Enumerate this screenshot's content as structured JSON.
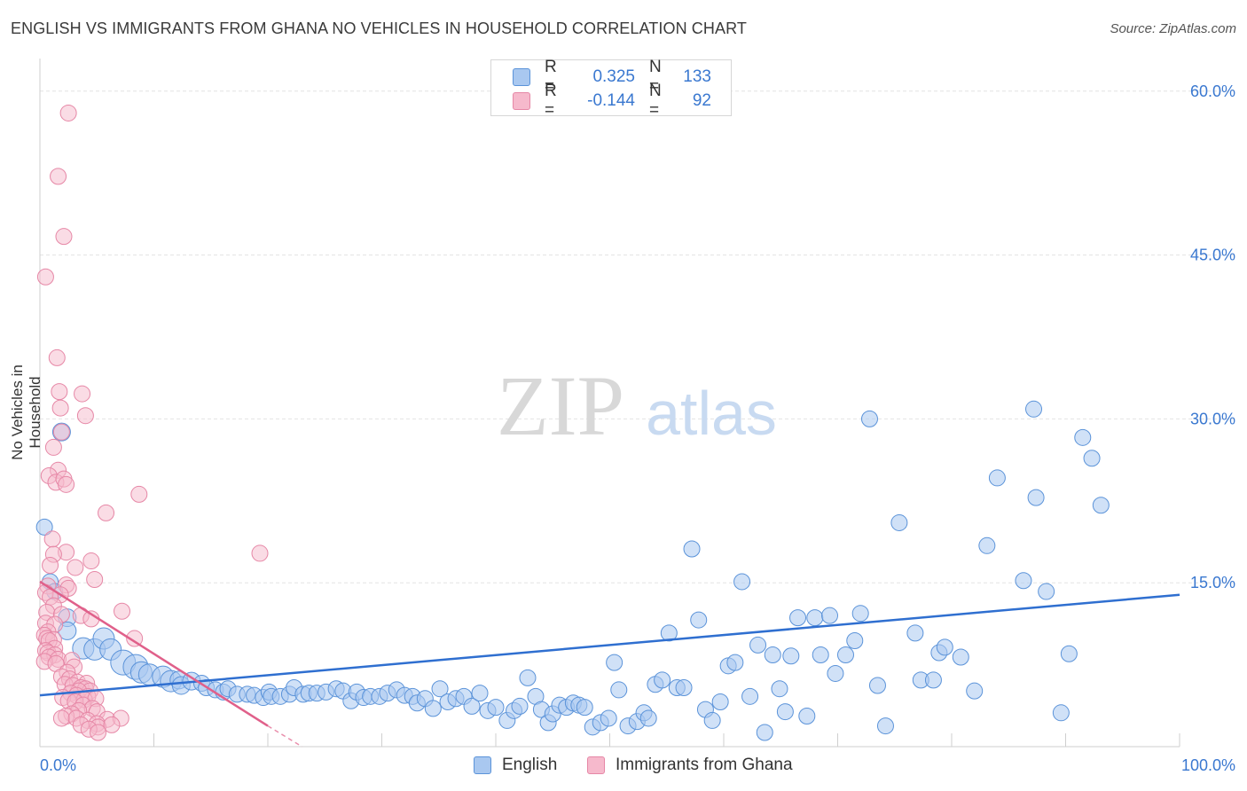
{
  "title": "ENGLISH VS IMMIGRANTS FROM GHANA NO VEHICLES IN HOUSEHOLD CORRELATION CHART",
  "source": "Source: ZipAtlas.com",
  "watermark": {
    "zip": "ZIP",
    "atlas": "atlas"
  },
  "colors": {
    "blue_fill": "#a9c8f0",
    "blue_stroke": "#5b93d9",
    "blue_line": "#2f6fd0",
    "pink_fill": "#f6b9cc",
    "pink_stroke": "#e687a6",
    "pink_line": "#e0608a",
    "axis_text": "#3a78d0",
    "grid": "#e3e3e3"
  },
  "legend": {
    "rows": [
      {
        "r_label": "R =",
        "r_value": "0.325",
        "n_label": "N =",
        "n_value": "133"
      },
      {
        "r_label": "R =",
        "r_value": "-0.144",
        "n_label": "N =",
        "n_value": "92"
      }
    ]
  },
  "bottom_legend": [
    "English",
    "Immigrants from Ghana"
  ],
  "chart_data": {
    "type": "scatter",
    "title": "ENGLISH VS IMMIGRANTS FROM GHANA NO VEHICLES IN HOUSEHOLD CORRELATION CHART",
    "xlabel": "",
    "ylabel": "No Vehicles in Household",
    "xlim": [
      0,
      100
    ],
    "ylim": [
      0,
      62.5
    ],
    "x_tick_labels": [
      "0.0%",
      "100.0%"
    ],
    "y_ticks": [
      15,
      30,
      45,
      60
    ],
    "y_tick_labels": [
      "15.0%",
      "30.0%",
      "45.0%",
      "60.0%"
    ],
    "grid": true,
    "series": [
      {
        "name": "English",
        "color": "#5b93d9",
        "trend": {
          "x": [
            0,
            100
          ],
          "y": [
            4.7,
            13.9
          ]
        },
        "points": [
          [
            0.4,
            20.1,
            9
          ],
          [
            0.9,
            15.1,
            9
          ],
          [
            1.3,
            14.2,
            9
          ],
          [
            1.9,
            28.8,
            10
          ],
          [
            2.4,
            11.8,
            10
          ],
          [
            2.4,
            10.6,
            10
          ],
          [
            3.8,
            9.0,
            12
          ],
          [
            4.8,
            8.9,
            12
          ],
          [
            5.6,
            9.9,
            12
          ],
          [
            6.2,
            8.9,
            12
          ],
          [
            7.3,
            7.7,
            14
          ],
          [
            8.4,
            7.3,
            14
          ],
          [
            8.9,
            6.8,
            12
          ],
          [
            9.6,
            6.6,
            12
          ],
          [
            10.8,
            6.4,
            12
          ],
          [
            11.5,
            6.0,
            12
          ],
          [
            12.2,
            6.1,
            10
          ],
          [
            12.4,
            5.6,
            10
          ],
          [
            13.3,
            6.0,
            10
          ],
          [
            14.2,
            5.8,
            9
          ],
          [
            14.6,
            5.4,
            9
          ],
          [
            15.4,
            5.2,
            9
          ],
          [
            16.1,
            5.0,
            9
          ],
          [
            16.5,
            5.3,
            9
          ],
          [
            17.3,
            4.8,
            9
          ],
          [
            18.2,
            4.8,
            9
          ],
          [
            18.8,
            4.7,
            9
          ],
          [
            19.6,
            4.5,
            9
          ],
          [
            20.1,
            5.0,
            9
          ],
          [
            20.3,
            4.6,
            9
          ],
          [
            21.1,
            4.6,
            9
          ],
          [
            21.9,
            4.8,
            9
          ],
          [
            22.3,
            5.4,
            9
          ],
          [
            23.1,
            4.8,
            9
          ],
          [
            23.6,
            4.9,
            9
          ],
          [
            24.3,
            4.9,
            9
          ],
          [
            25.1,
            5.0,
            9
          ],
          [
            26.0,
            5.3,
            9
          ],
          [
            26.6,
            5.1,
            9
          ],
          [
            27.3,
            4.2,
            9
          ],
          [
            27.8,
            5.0,
            9
          ],
          [
            28.4,
            4.5,
            9
          ],
          [
            29.0,
            4.6,
            9
          ],
          [
            29.8,
            4.6,
            9
          ],
          [
            30.5,
            4.9,
            9
          ],
          [
            31.3,
            5.2,
            9
          ],
          [
            32.0,
            4.7,
            9
          ],
          [
            32.7,
            4.6,
            9
          ],
          [
            33.1,
            4.0,
            9
          ],
          [
            33.8,
            4.4,
            9
          ],
          [
            34.5,
            3.5,
            9
          ],
          [
            35.1,
            5.3,
            9
          ],
          [
            35.8,
            4.1,
            9
          ],
          [
            36.5,
            4.4,
            9
          ],
          [
            37.2,
            4.6,
            9
          ],
          [
            37.9,
            3.7,
            9
          ],
          [
            38.6,
            4.9,
            9
          ],
          [
            39.3,
            3.3,
            9
          ],
          [
            40.0,
            3.6,
            9
          ],
          [
            41.0,
            2.4,
            9
          ],
          [
            41.6,
            3.3,
            9
          ],
          [
            42.1,
            3.7,
            9
          ],
          [
            42.8,
            6.3,
            9
          ],
          [
            43.5,
            4.6,
            9
          ],
          [
            44.0,
            3.4,
            9
          ],
          [
            44.6,
            2.2,
            9
          ],
          [
            45.0,
            3.0,
            9
          ],
          [
            45.6,
            3.8,
            9
          ],
          [
            46.2,
            3.6,
            9
          ],
          [
            46.8,
            4.0,
            9
          ],
          [
            47.3,
            3.8,
            9
          ],
          [
            47.8,
            3.6,
            9
          ],
          [
            48.5,
            1.8,
            9
          ],
          [
            49.2,
            2.2,
            9
          ],
          [
            49.9,
            2.6,
            9
          ],
          [
            50.4,
            7.7,
            9
          ],
          [
            50.8,
            5.2,
            9
          ],
          [
            51.6,
            1.9,
            9
          ],
          [
            52.4,
            2.3,
            9
          ],
          [
            53.0,
            3.1,
            9
          ],
          [
            53.4,
            2.6,
            9
          ],
          [
            54.0,
            5.7,
            9
          ],
          [
            54.6,
            6.1,
            9
          ],
          [
            55.2,
            10.4,
            9
          ],
          [
            55.9,
            5.4,
            9
          ],
          [
            56.5,
            5.4,
            9
          ],
          [
            57.2,
            18.1,
            9
          ],
          [
            57.8,
            11.6,
            9
          ],
          [
            58.4,
            3.4,
            9
          ],
          [
            59.0,
            2.4,
            9
          ],
          [
            59.7,
            4.1,
            9
          ],
          [
            60.4,
            7.4,
            9
          ],
          [
            61.0,
            7.7,
            9
          ],
          [
            61.6,
            15.1,
            9
          ],
          [
            62.3,
            4.6,
            9
          ],
          [
            63.0,
            9.3,
            9
          ],
          [
            63.6,
            1.3,
            9
          ],
          [
            64.3,
            8.4,
            9
          ],
          [
            64.9,
            5.3,
            9
          ],
          [
            65.4,
            3.2,
            9
          ],
          [
            65.9,
            8.3,
            9
          ],
          [
            66.5,
            11.8,
            9
          ],
          [
            67.3,
            2.8,
            9
          ],
          [
            68.0,
            11.8,
            9
          ],
          [
            68.5,
            8.4,
            9
          ],
          [
            69.3,
            12.0,
            9
          ],
          [
            69.8,
            6.7,
            9
          ],
          [
            70.7,
            8.4,
            9
          ],
          [
            71.5,
            9.7,
            9
          ],
          [
            72.0,
            12.2,
            9
          ],
          [
            72.8,
            30.0,
            9
          ],
          [
            73.5,
            5.6,
            9
          ],
          [
            74.2,
            1.9,
            9
          ],
          [
            75.4,
            20.5,
            9
          ],
          [
            76.8,
            10.4,
            9
          ],
          [
            77.3,
            6.1,
            9
          ],
          [
            78.4,
            6.1,
            9
          ],
          [
            78.9,
            8.6,
            9
          ],
          [
            79.4,
            9.1,
            9
          ],
          [
            80.8,
            8.2,
            9
          ],
          [
            82.0,
            5.1,
            9
          ],
          [
            83.1,
            18.4,
            9
          ],
          [
            84.0,
            24.6,
            9
          ],
          [
            86.3,
            15.2,
            9
          ],
          [
            87.2,
            30.9,
            9
          ],
          [
            87.4,
            22.8,
            9
          ],
          [
            88.3,
            14.2,
            9
          ],
          [
            89.6,
            3.1,
            9
          ],
          [
            90.3,
            8.5,
            9
          ],
          [
            91.5,
            28.3,
            9
          ],
          [
            92.3,
            26.4,
            9
          ],
          [
            93.1,
            22.1,
            9
          ]
        ]
      },
      {
        "name": "Immigrants from Ghana",
        "color": "#e687a6",
        "trend": {
          "x": [
            0,
            20
          ],
          "y": [
            15.1,
            1.9
          ]
        },
        "trend_dashed": {
          "x": [
            20,
            23
          ],
          "y": [
            1.9,
            0.0
          ]
        },
        "points": [
          [
            2.5,
            58.0,
            9
          ],
          [
            1.6,
            52.2,
            9
          ],
          [
            2.1,
            46.7,
            9
          ],
          [
            0.5,
            43.0,
            9
          ],
          [
            1.5,
            35.6,
            9
          ],
          [
            1.7,
            32.5,
            9
          ],
          [
            3.7,
            32.3,
            9
          ],
          [
            1.8,
            31.0,
            9
          ],
          [
            4.0,
            30.3,
            9
          ],
          [
            1.9,
            28.8,
            9
          ],
          [
            1.2,
            27.4,
            9
          ],
          [
            1.6,
            25.3,
            9
          ],
          [
            0.8,
            24.8,
            9
          ],
          [
            1.4,
            24.2,
            9
          ],
          [
            2.1,
            24.5,
            9
          ],
          [
            2.3,
            24.0,
            9
          ],
          [
            8.7,
            23.1,
            9
          ],
          [
            5.8,
            21.4,
            9
          ],
          [
            1.1,
            19.0,
            9
          ],
          [
            2.3,
            17.8,
            9
          ],
          [
            19.3,
            17.7,
            9
          ],
          [
            1.2,
            17.6,
            9
          ],
          [
            4.5,
            17.0,
            9
          ],
          [
            0.9,
            16.6,
            9
          ],
          [
            3.1,
            16.4,
            9
          ],
          [
            4.8,
            15.3,
            9
          ],
          [
            0.7,
            14.7,
            9
          ],
          [
            2.3,
            14.8,
            9
          ],
          [
            2.5,
            14.5,
            9
          ],
          [
            0.5,
            14.1,
            9
          ],
          [
            1.8,
            13.9,
            9
          ],
          [
            0.9,
            13.7,
            9
          ],
          [
            1.2,
            12.9,
            9
          ],
          [
            7.2,
            12.4,
            9
          ],
          [
            0.6,
            12.3,
            9
          ],
          [
            1.9,
            12.1,
            9
          ],
          [
            3.6,
            12.0,
            9
          ],
          [
            4.5,
            11.7,
            9
          ],
          [
            0.5,
            11.3,
            9
          ],
          [
            1.3,
            11.2,
            9
          ],
          [
            0.7,
            10.5,
            9
          ],
          [
            0.4,
            10.2,
            9
          ],
          [
            0.6,
            9.9,
            9
          ],
          [
            1.2,
            9.8,
            9
          ],
          [
            8.3,
            9.9,
            9
          ],
          [
            0.8,
            9.7,
            9
          ],
          [
            1.3,
            9.0,
            9
          ],
          [
            0.5,
            8.8,
            9
          ],
          [
            0.7,
            8.6,
            9
          ],
          [
            1.3,
            8.4,
            9
          ],
          [
            0.8,
            8.2,
            9
          ],
          [
            1.6,
            8.0,
            9
          ],
          [
            0.4,
            7.8,
            9
          ],
          [
            2.8,
            7.9,
            9
          ],
          [
            1.4,
            7.6,
            9
          ],
          [
            3.0,
            7.3,
            9
          ],
          [
            2.4,
            6.8,
            9
          ],
          [
            1.9,
            6.4,
            9
          ],
          [
            2.6,
            6.2,
            9
          ],
          [
            3.3,
            5.9,
            9
          ],
          [
            2.2,
            5.7,
            9
          ],
          [
            4.1,
            5.8,
            9
          ],
          [
            2.9,
            5.6,
            9
          ],
          [
            3.6,
            5.4,
            9
          ],
          [
            4.0,
            5.3,
            9
          ],
          [
            4.4,
            5.1,
            9
          ],
          [
            3.4,
            5.1,
            9
          ],
          [
            2.7,
            4.9,
            9
          ],
          [
            3.2,
            4.7,
            9
          ],
          [
            4.2,
            4.6,
            9
          ],
          [
            2.0,
            4.5,
            9
          ],
          [
            3.9,
            4.3,
            9
          ],
          [
            4.9,
            4.4,
            9
          ],
          [
            2.5,
            4.2,
            9
          ],
          [
            3.1,
            4.1,
            9
          ],
          [
            3.8,
            3.8,
            9
          ],
          [
            4.6,
            3.5,
            9
          ],
          [
            3.4,
            3.3,
            9
          ],
          [
            2.8,
            3.0,
            9
          ],
          [
            5.0,
            3.2,
            9
          ],
          [
            2.3,
            2.8,
            9
          ],
          [
            1.9,
            2.6,
            9
          ],
          [
            3.2,
            2.6,
            9
          ],
          [
            5.9,
            2.5,
            9
          ],
          [
            7.1,
            2.6,
            9
          ],
          [
            4.2,
            2.4,
            9
          ],
          [
            5.0,
            2.1,
            9
          ],
          [
            3.6,
            2.0,
            9
          ],
          [
            5.1,
            1.8,
            9
          ],
          [
            4.3,
            1.6,
            9
          ],
          [
            6.3,
            2.0,
            9
          ],
          [
            5.1,
            1.3,
            9
          ]
        ]
      }
    ]
  }
}
